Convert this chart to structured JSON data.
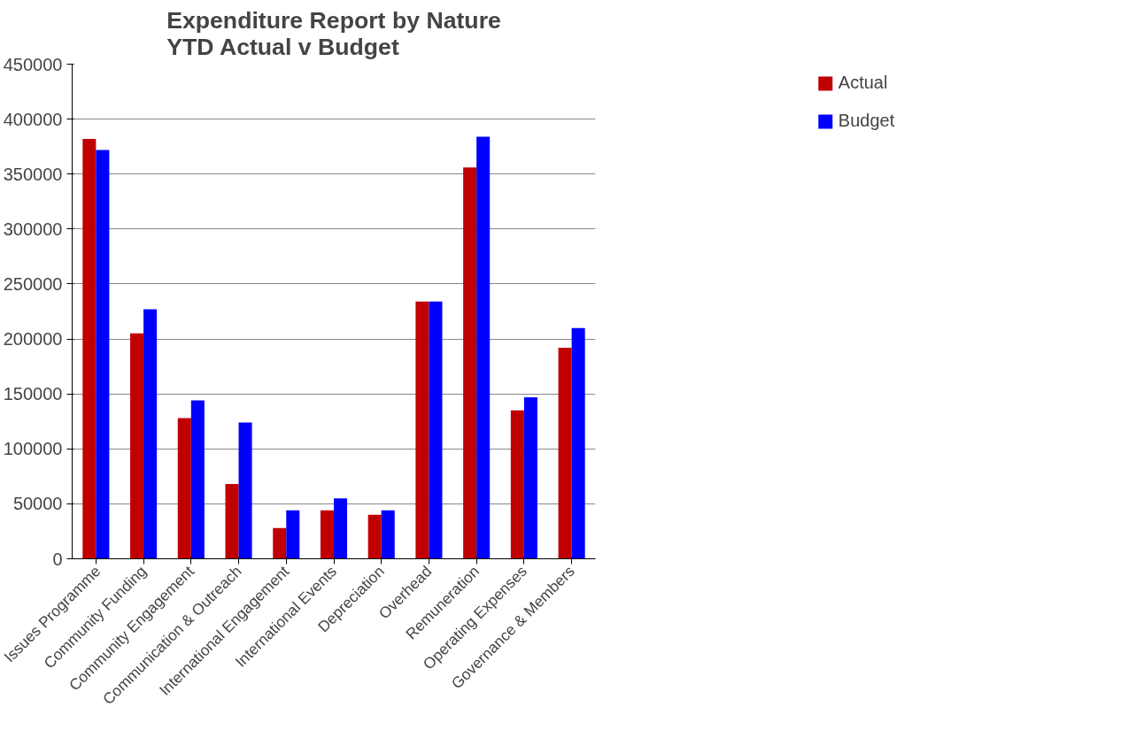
{
  "chart_data": {
    "type": "bar",
    "title": "Expenditure Report by Nature\nYTD Actual v Budget",
    "categories": [
      "Issues Programme",
      "Community Funding",
      "Community Engagement",
      "Communication & Outreach",
      "International Engagement",
      "International Events",
      "Depreciation",
      "Overhead",
      "Remuneration",
      "Operating Expenses",
      "Governance & Members"
    ],
    "series": [
      {
        "name": "Actual",
        "color": "#c00000",
        "values": [
          382000,
          205000,
          128000,
          68000,
          28000,
          44000,
          40000,
          234000,
          356000,
          135000,
          192000
        ]
      },
      {
        "name": "Budget",
        "color": "#0000ff",
        "values": [
          372000,
          227000,
          144000,
          124000,
          44000,
          55000,
          44000,
          234000,
          384000,
          147000,
          210000
        ]
      }
    ],
    "ylim": [
      0,
      450000
    ],
    "yticks": [
      0,
      50000,
      100000,
      150000,
      200000,
      250000,
      300000,
      350000,
      400000,
      450000
    ],
    "grid": "y",
    "legend": "top right"
  }
}
